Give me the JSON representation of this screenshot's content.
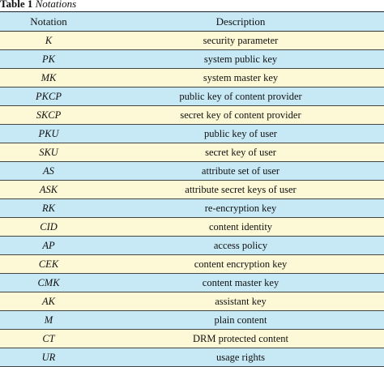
{
  "caption": {
    "label": "Table 1",
    "title": "Notations"
  },
  "table": {
    "headers": [
      "Notation",
      "Description"
    ],
    "rows": [
      {
        "notation": "K",
        "description": "security parameter"
      },
      {
        "notation": "PK",
        "description": "system public key"
      },
      {
        "notation": "MK",
        "description": "system master key"
      },
      {
        "notation": "PKCP",
        "description": "public key of content provider"
      },
      {
        "notation": "SKCP",
        "description": "secret key of content provider"
      },
      {
        "notation": "PKU",
        "description": "public key of user"
      },
      {
        "notation": "SKU",
        "description": "secret key of user"
      },
      {
        "notation": "AS",
        "description": "attribute set of user"
      },
      {
        "notation": "ASK",
        "description": "attribute secret keys of user"
      },
      {
        "notation": "RK",
        "description": "re-encryption key"
      },
      {
        "notation": "CID",
        "description": "content identity"
      },
      {
        "notation": "AP",
        "description": "access policy"
      },
      {
        "notation": "CEK",
        "description": "content encryption key"
      },
      {
        "notation": "CMK",
        "description": "content master key"
      },
      {
        "notation": "AK",
        "description": "assistant key"
      },
      {
        "notation": "M",
        "description": "plain content"
      },
      {
        "notation": "CT",
        "description": "DRM protected content"
      },
      {
        "notation": "UR",
        "description": "usage rights"
      }
    ]
  },
  "colors": {
    "header_bg": "#c7e9f6",
    "row_odd_bg": "#fdf8d5",
    "row_even_bg": "#c7e9f6"
  }
}
